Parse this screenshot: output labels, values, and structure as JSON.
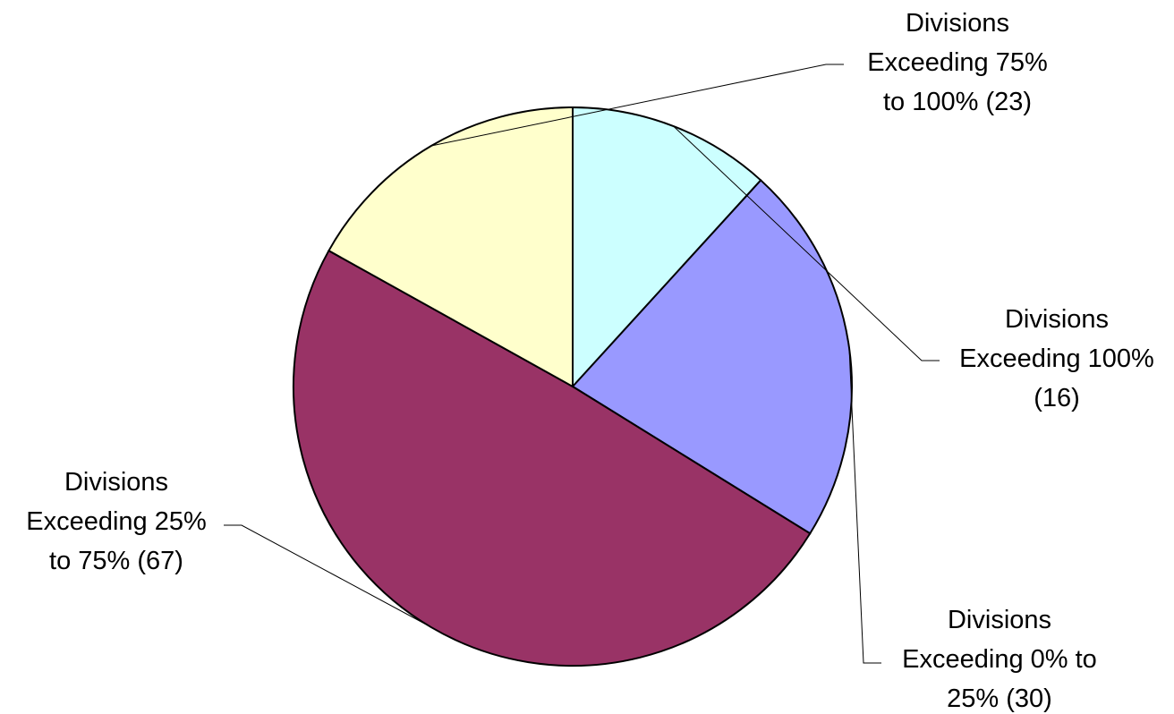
{
  "chart_data": {
    "type": "pie",
    "title": "",
    "start_angle_deg": 90,
    "direction": "clockwise",
    "legend": "none",
    "slices": [
      {
        "name": "Divisions Exceeding 100% (16)",
        "label_lines": [
          "Divisions",
          "Exceeding 100%",
          "(16)"
        ],
        "value": 16,
        "color": "#CCFFFF"
      },
      {
        "name": "Divisions Exceeding 0% to 25% (30)",
        "label_lines": [
          "Divisions",
          "Exceeding 0% to",
          "25% (30)"
        ],
        "value": 30,
        "color": "#9999FF"
      },
      {
        "name": "Divisions Exceeding 25% to 75% (67)",
        "label_lines": [
          "Divisions",
          "Exceeding 25%",
          "to 75% (67)"
        ],
        "value": 67,
        "color": "#993366"
      },
      {
        "name": "Divisions Exceeding 75% to 100% (23)",
        "label_lines": [
          "Divisions",
          "Exceeding 75%",
          "to 100% (23)"
        ],
        "value": 23,
        "color": "#FFFFCC"
      }
    ]
  }
}
